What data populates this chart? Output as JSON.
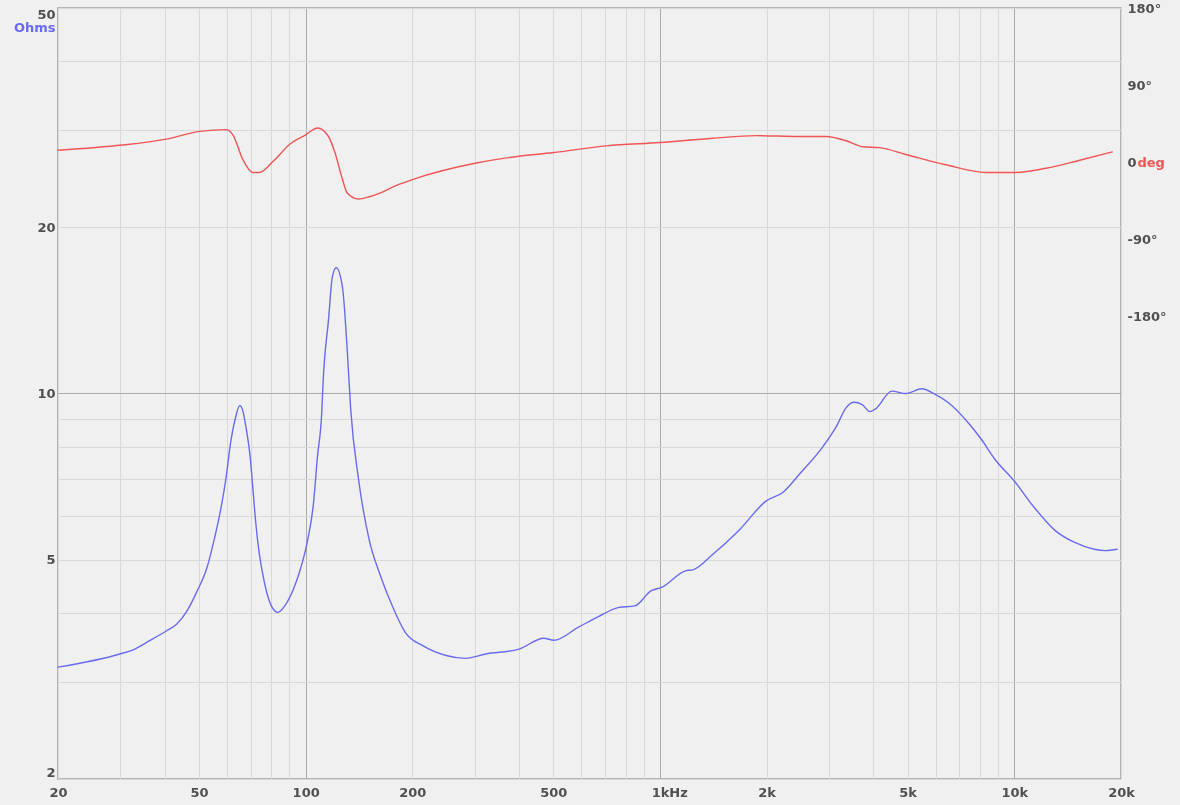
{
  "chart_data": {
    "type": "line",
    "series": [
      {
        "color": "#6a6af0",
        "x": [
          20,
          29.9,
          32.6,
          36.2,
          40.4,
          43.3,
          46.3,
          49.2,
          52.7,
          55.2,
          57.6,
          59.7,
          61.2,
          63.2,
          65.2,
          66.5,
          68,
          69.7,
          71,
          72.3,
          73.9,
          76.5,
          80,
          83.5,
          87.3,
          92.4,
          96.6,
          101,
          105,
          108,
          111,
          112,
          116,
          119,
          122,
          127,
          131,
          134,
          141,
          151,
          162,
          177,
          191,
          214,
          249,
          283,
          322,
          400,
          470,
          502,
          589,
          670,
          762,
          849,
          945,
          1010,
          1180,
          1240,
          1410,
          1680,
          1990,
          2230,
          2470,
          2890,
          3150,
          3350,
          3530,
          3720,
          3910,
          4060,
          4510,
          4940,
          5490,
          5980,
          6520,
          7410,
          8070,
          8810,
          10000,
          11300,
          13100,
          14700,
          16800,
          18100,
          19500
        ],
        "values": [
          3.19,
          3.37,
          3.43,
          3.56,
          3.71,
          3.82,
          4.04,
          4.36,
          4.84,
          5.44,
          6.17,
          7.08,
          8.03,
          8.97,
          9.51,
          9.29,
          8.61,
          7.7,
          6.7,
          5.83,
          5.15,
          4.54,
          4.12,
          4.01,
          4.12,
          4.42,
          4.8,
          5.37,
          6.25,
          7.7,
          9.23,
          10.5,
          13.6,
          16.3,
          16.9,
          15.6,
          12,
          9.36,
          6.99,
          5.44,
          4.7,
          4.07,
          3.69,
          3.49,
          3.35,
          3.31,
          3.37,
          3.44,
          3.6,
          3.57,
          3.77,
          3.94,
          4.09,
          4.12,
          4.39,
          4.45,
          4.77,
          4.79,
          5.11,
          5.67,
          6.38,
          6.63,
          7.13,
          8.03,
          8.73,
          9.42,
          9.64,
          9.55,
          9.27,
          9.38,
          10.1,
          10,
          10.2,
          9.96,
          9.62,
          8.85,
          8.26,
          7.6,
          6.94,
          6.25,
          5.63,
          5.38,
          5.22,
          5.19,
          5.22
        ]
      },
      {
        "color": "#f05555",
        "axis": "y2",
        "x": [
          20,
          30.4,
          40.4,
          50.3,
          59.7,
          62.3,
          66.5,
          70.9,
          74,
          81,
          90.2,
          100,
          108,
          116,
          121,
          127,
          131,
          141,
          152,
          162,
          183,
          201,
          303,
          400,
          497,
          705,
          1000,
          1410,
          1870,
          2470,
          2940,
          3350,
          3730,
          4160,
          4940,
          6410,
          8320,
          10000,
          12300,
          15200,
          18900
        ],
        "values": [
          14,
          20,
          27,
          36,
          38,
          32,
          3,
          -12,
          -12,
          1,
          21,
          32,
          40,
          30,
          11,
          -20,
          -36,
          -43,
          -40,
          -36,
          -26,
          -20,
          -1,
          7,
          11,
          19,
          23,
          28,
          31,
          30,
          30,
          25,
          18,
          17,
          9,
          -3,
          -12,
          -12,
          -7,
          2,
          12
        ]
      }
    ],
    "xlim": [
      20,
      20000
    ],
    "xticks": [
      20,
      {
        "value": 30,
        "label": null
      },
      {
        "value": 40,
        "label": null
      },
      50,
      {
        "value": 60,
        "label": null
      },
      {
        "value": 70,
        "label": null
      },
      {
        "value": 80,
        "label": null
      },
      {
        "value": 90,
        "label": null
      },
      100,
      200,
      {
        "value": 300,
        "label": null
      },
      {
        "value": 400,
        "label": null
      },
      500,
      {
        "value": 600,
        "label": null
      },
      {
        "value": 700,
        "label": null
      },
      {
        "value": 800,
        "label": null
      },
      {
        "value": 900,
        "label": null
      },
      {
        "value": 1000,
        "label": "1k"
      },
      {
        "value": 2000,
        "label": "2k"
      },
      {
        "value": 3000,
        "label": null
      },
      {
        "value": 4000,
        "label": null
      },
      {
        "value": 5000,
        "label": "5k"
      },
      {
        "value": 6000,
        "label": null
      },
      {
        "value": 7000,
        "label": null
      },
      {
        "value": 8000,
        "label": null
      },
      {
        "value": 9000,
        "label": null
      },
      {
        "value": 10000,
        "label": "10k"
      },
      {
        "value": 20000,
        "label": "20k"
      }
    ],
    "ylim": [
      2,
      50
    ],
    "yticks": [
      2,
      {
        "value": 3,
        "label": null
      },
      {
        "value": 4,
        "label": null
      },
      5,
      {
        "value": 6,
        "label": null
      },
      {
        "value": 7,
        "label": null
      },
      {
        "value": 8,
        "label": null
      },
      {
        "value": 9,
        "label": null
      },
      10,
      20,
      {
        "value": 30,
        "label": null
      },
      {
        "value": 40,
        "label": null
      },
      50
    ],
    "y2lim": [
      -720,
      180
    ],
    "y2ticks": [
      {
        "value": 180,
        "label": "180°"
      },
      {
        "value": 90,
        "label": "90°"
      },
      0,
      {
        "value": -90,
        "label": "-90°"
      },
      {
        "value": -180,
        "label": "-180°"
      }
    ],
    "xlabel": "Hz",
    "ylabel": "Ohms",
    "y2label": "deg",
    "log": "xy",
    "grid": true
  }
}
